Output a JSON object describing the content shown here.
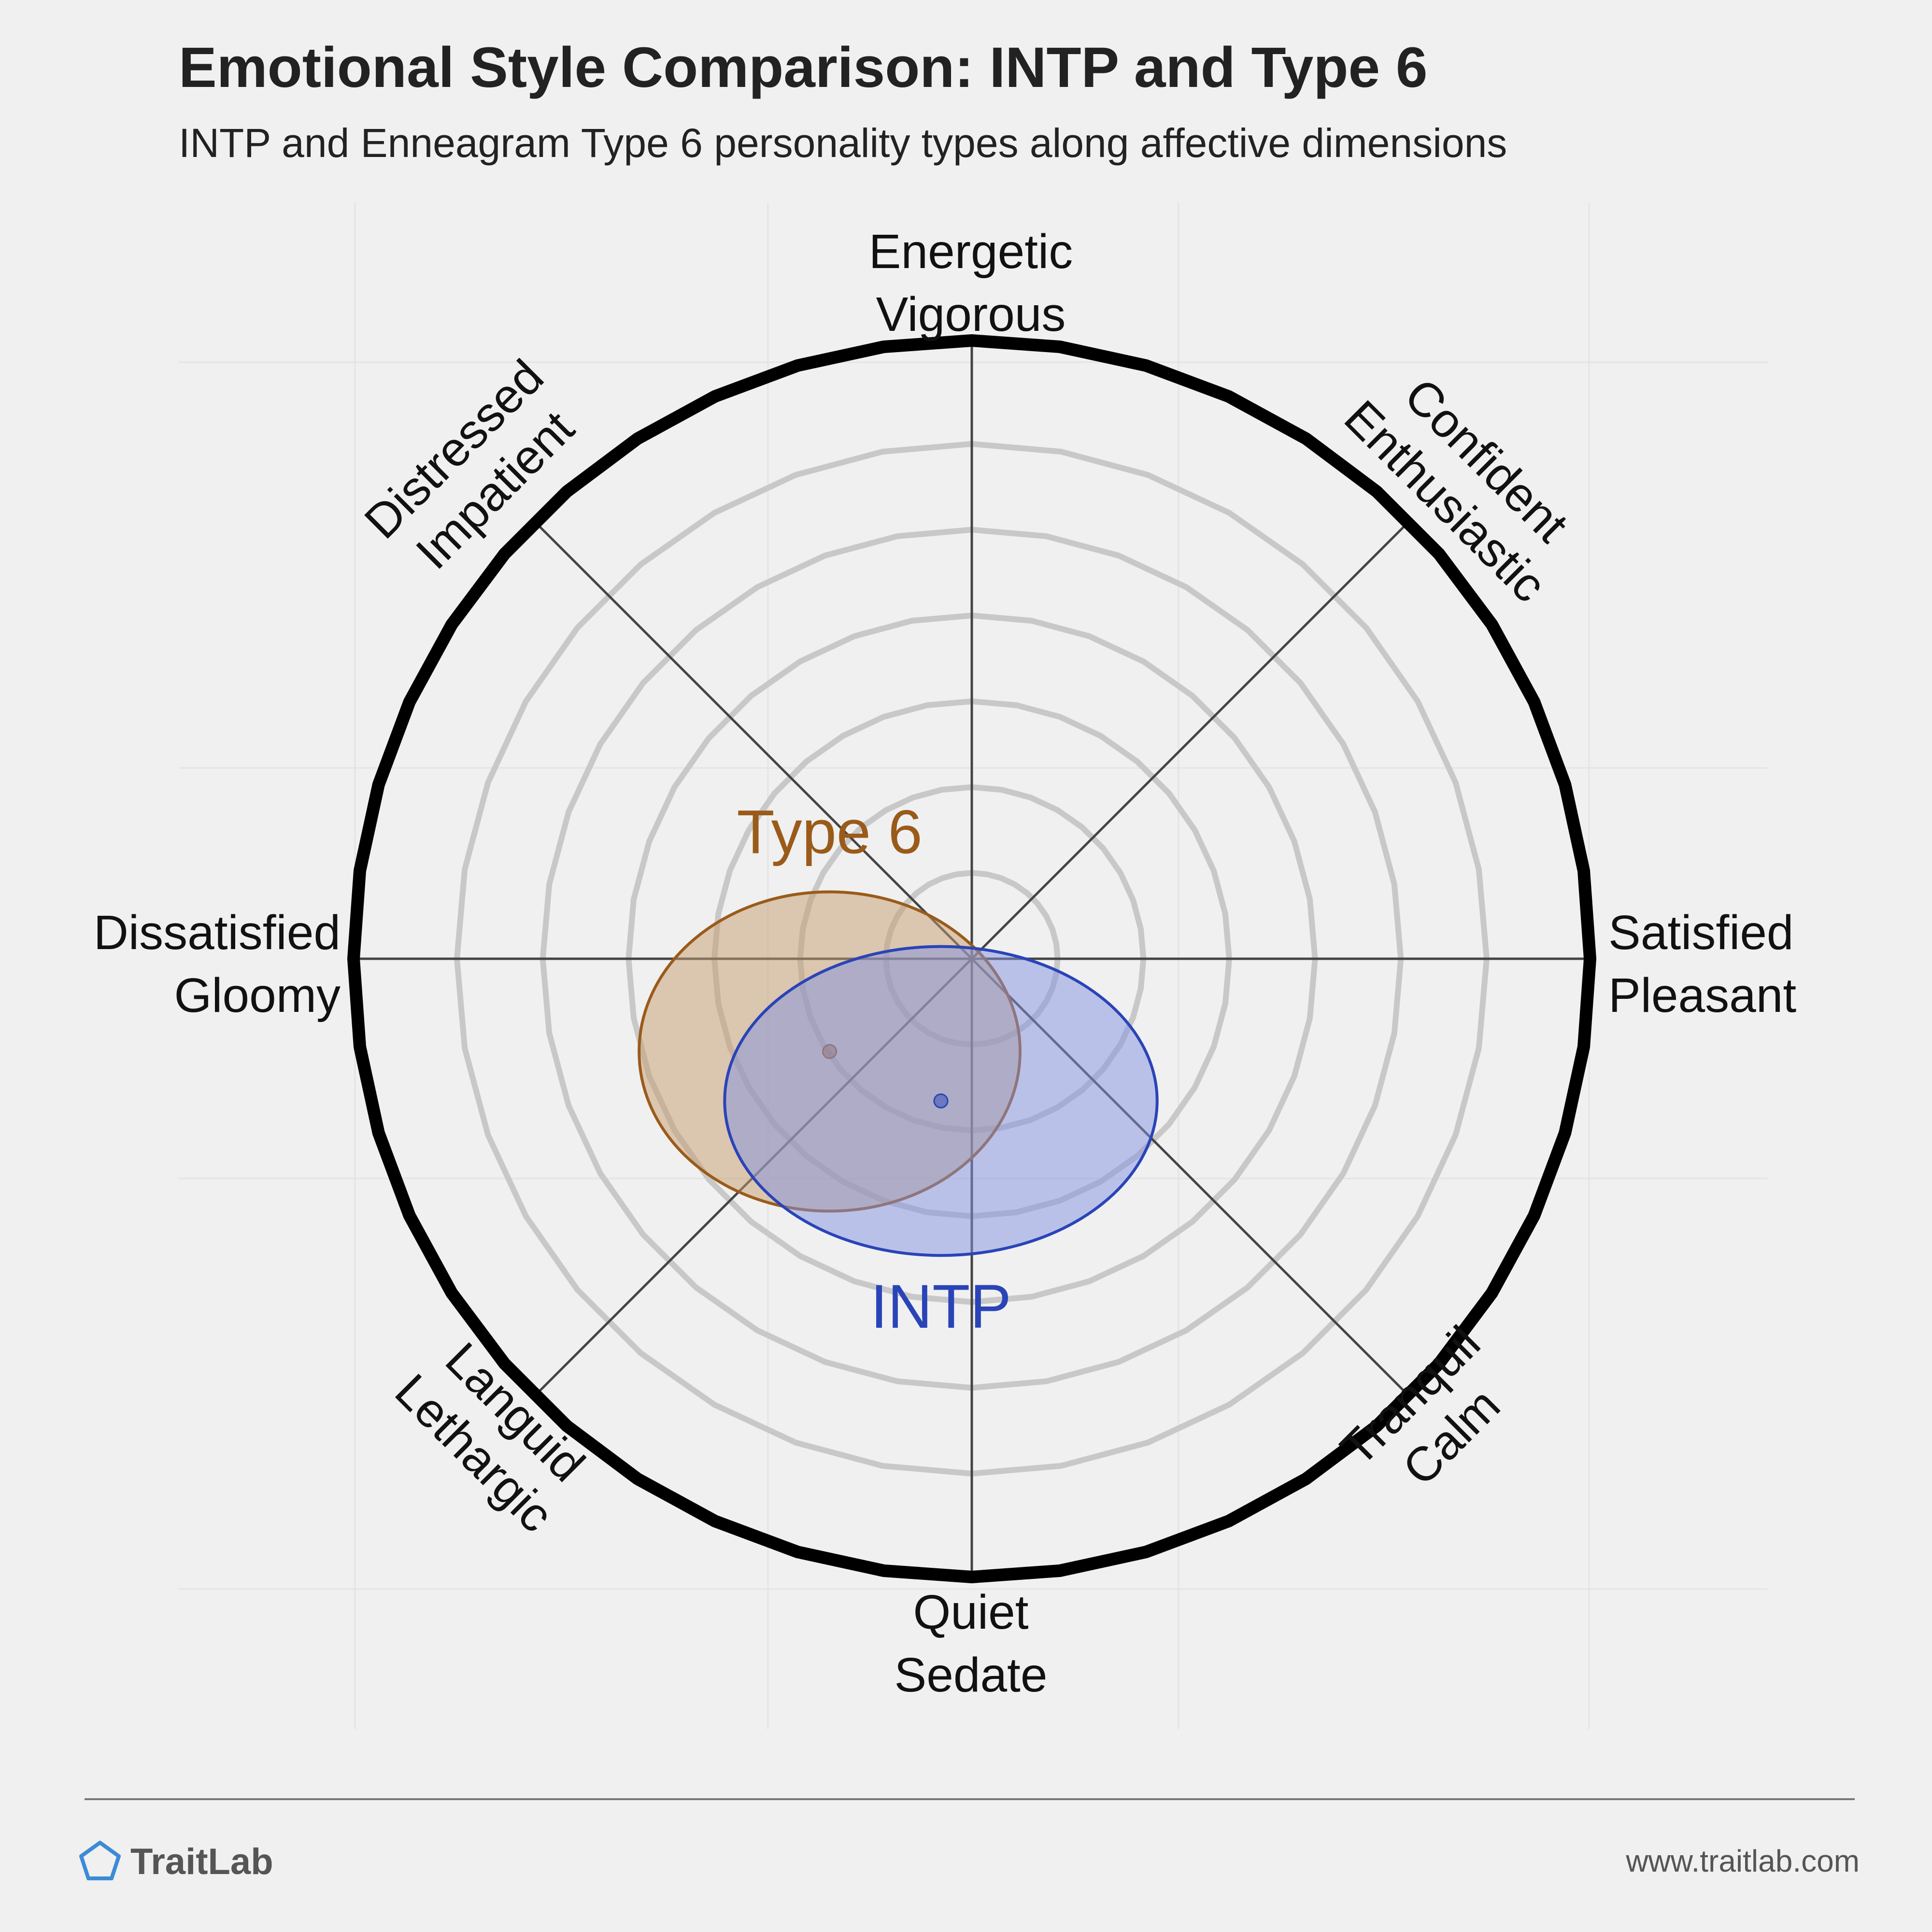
{
  "chart_data": {
    "type": "scatter",
    "title": "Emotional Style Comparison: INTP and Type 6",
    "subtitle": "INTP and Enneagram Type 6 personality types along affective dimensions",
    "axes": {
      "top": [
        "Energetic",
        "Vigorous"
      ],
      "top_right": [
        "Confident",
        "Enthusiastic"
      ],
      "right": [
        "Satisfied",
        "Pleasant"
      ],
      "bottom_right": [
        "Tranquil",
        "Calm"
      ],
      "bottom": [
        "Quiet",
        "Sedate"
      ],
      "bottom_left": [
        "Languid",
        "Lethargic"
      ],
      "left": [
        "Dissatisfied",
        "Gloomy"
      ],
      "top_left": [
        "Distressed",
        "Impatient"
      ]
    },
    "xlim": [
      -1,
      1
    ],
    "ylim": [
      -1,
      1
    ],
    "rings": 6,
    "series": [
      {
        "name": "Type 6",
        "x": -0.23,
        "y": -0.15,
        "spread_x": 0.37,
        "spread_y": 0.31,
        "color": "#9a5b1a",
        "fill": "#c69c6d"
      },
      {
        "name": "INTP",
        "x": -0.05,
        "y": -0.23,
        "spread_x": 0.42,
        "spread_y": 0.3,
        "color": "#2a44b8",
        "fill": "#8492e0"
      }
    ]
  },
  "footer": {
    "brand": "TraitLab",
    "url": "www.traitlab.com"
  },
  "colors": {
    "background": "#f0f0f0",
    "ring": "#c8c8c8",
    "outer_ring": "#000000",
    "spoke": "#444444",
    "footer_text": "#555555",
    "logo": "#3c8bd6"
  }
}
